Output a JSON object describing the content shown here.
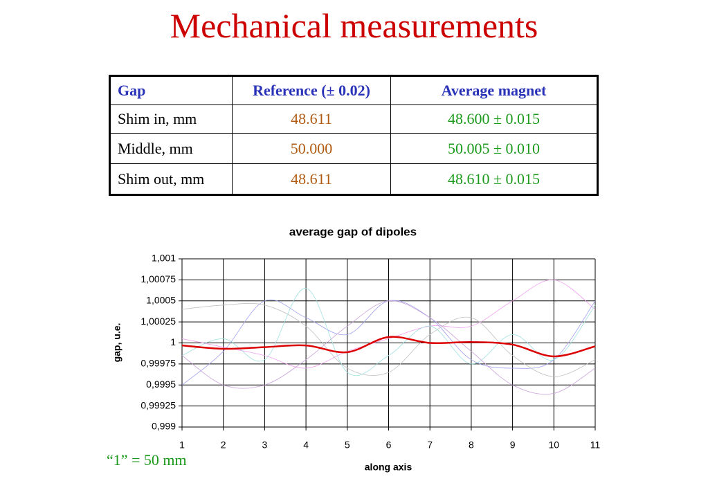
{
  "title": "Mechanical measurements",
  "table": {
    "header": [
      "Gap",
      "Reference (± 0.02)",
      "Average magnet"
    ],
    "rows": [
      [
        "Shim in, mm",
        "48.611",
        "48.600 ± 0.015"
      ],
      [
        "Middle, mm",
        "50.000",
        "50.005 ± 0.010"
      ],
      [
        "Shim out, mm",
        "48.611",
        "48.610 ± 0.015"
      ]
    ]
  },
  "note": "“1” = 50 mm",
  "chart_data": {
    "type": "line",
    "title": "average gap of dipoles",
    "x_label": "along axis",
    "y_label": "gap, u.e.",
    "x": [
      1,
      2,
      3,
      4,
      5,
      6,
      7,
      8,
      9,
      10,
      11
    ],
    "xlim": [
      1,
      11
    ],
    "xticks": [
      1,
      2,
      3,
      4,
      5,
      6,
      7,
      8,
      9,
      10,
      11
    ],
    "ylim": [
      0.999,
      1.001
    ],
    "yticks": [
      {
        "value": 0.999,
        "label": "0,999"
      },
      {
        "value": 0.99925,
        "label": "0,99925"
      },
      {
        "value": 0.9995,
        "label": "0,9995"
      },
      {
        "value": 0.99975,
        "label": "0,99975"
      },
      1,
      {
        "value": 1.00025,
        "label": "1,00025"
      },
      {
        "value": 1.0005,
        "label": "1,0005"
      },
      {
        "value": 1.00075,
        "label": "1,00075"
      },
      {
        "value": 1.001,
        "label": "1,001"
      }
    ],
    "grid": true,
    "series": [
      {
        "color": "#f0a0f0",
        "values": [
          1.00005,
          0.99995,
          0.99985,
          0.9997,
          0.9999,
          1.00005,
          1.0002,
          1.0002,
          1.0005,
          1.00075,
          1.0004
        ]
      },
      {
        "color": "#a0a0f0",
        "values": [
          0.9995,
          0.9999,
          1.0005,
          1.0003,
          1.0001,
          1.0005,
          1.0003,
          0.9998,
          0.9997,
          0.9998,
          1.0005
        ]
      },
      {
        "color": "#c0c0c0",
        "values": [
          1.0004,
          1.00045,
          1.00045,
          1.0002,
          0.9997,
          0.99965,
          1.0001,
          1.0003,
          0.99985,
          0.9996,
          0.9998
        ]
      },
      {
        "color": "#a0e0e0",
        "values": [
          0.99985,
          1.00005,
          0.9998,
          1.00065,
          0.99965,
          0.99985,
          1.0002,
          0.99975,
          1.0001,
          0.9998,
          1.00045
        ]
      },
      {
        "color": "#c8a0d8",
        "values": [
          0.99985,
          0.9995,
          0.9995,
          0.9998,
          1.0002,
          1.0005,
          1.0003,
          0.9999,
          0.9995,
          0.9994,
          0.9997
        ]
      },
      {
        "color": "#dd0000",
        "values": [
          0.99997,
          0.99993,
          0.99995,
          0.99997,
          0.99989,
          1.00007,
          1.0,
          1.00001,
          0.99998,
          0.99984,
          0.99996
        ]
      }
    ]
  }
}
